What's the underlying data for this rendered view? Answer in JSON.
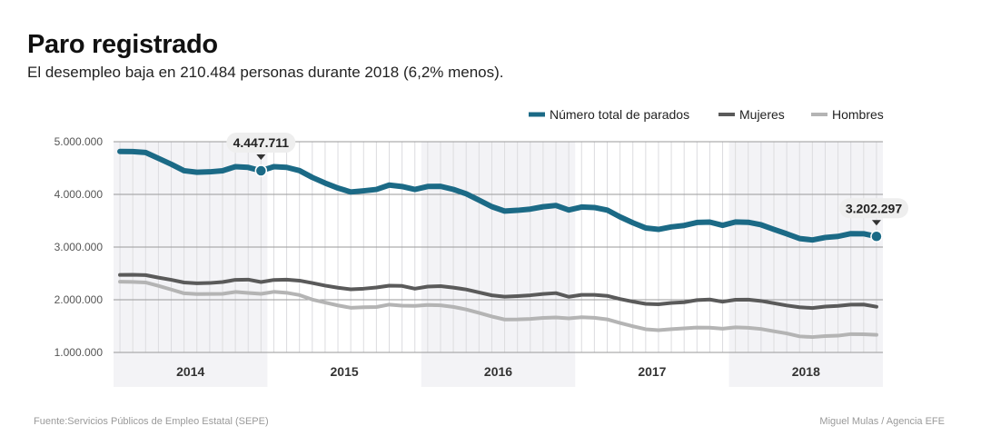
{
  "header": {
    "title": "Paro registrado",
    "subtitle": "El desempleo baja en 210.484 personas durante 2018 (6,2% menos)."
  },
  "footer": {
    "source": "Fuente:Servicios Públicos de Empleo Estatal (SEPE)",
    "credit": "Miguel Mulas / Agencia EFE"
  },
  "chart_data": {
    "type": "line",
    "title": "Paro registrado",
    "xlabel": "",
    "ylabel": "",
    "ylim": [
      1000000,
      5000000
    ],
    "yticks": [
      1000000,
      2000000,
      3000000,
      4000000,
      5000000
    ],
    "ytick_labels": [
      "1.000.000",
      "2.000.000",
      "3.000.000",
      "4.000.000",
      "5.000.000"
    ],
    "years": [
      "2014",
      "2015",
      "2016",
      "2017",
      "2018"
    ],
    "legend_position": "top-right",
    "grid": true,
    "series": [
      {
        "name": "Número total de parados",
        "color": "#1b6a86",
        "values": [
          4814435,
          4812486,
          4795866,
          4683939,
          4572385,
          4449701,
          4420358,
          4427930,
          4447650,
          4526225,
          4512153,
          4447711,
          4525691,
          4512816,
          4451939,
          4322200,
          4215000,
          4120304,
          4046276,
          4067955,
          4094042,
          4176369,
          4149298,
          4093508,
          4150025,
          4152986,
          4094770,
          4011500,
          3891403,
          3767054,
          3683061,
          3697496,
          3720297,
          3764982,
          3789823,
          3702974,
          3760231,
          3750876,
          3702317,
          3573036,
          3461128,
          3362811,
          3335924,
          3382324,
          3410182,
          3467026,
          3474281,
          3412781,
          3476528,
          3470248,
          3422551,
          3335868,
          3252130,
          3162162,
          3135021,
          3182068,
          3202509,
          3254703,
          3252867,
          3202297
        ]
      },
      {
        "name": "Mujeres",
        "color": "#5a5a5a",
        "values": [
          2471000,
          2474000,
          2468000,
          2420000,
          2378000,
          2328000,
          2312000,
          2318000,
          2336000,
          2378000,
          2382000,
          2336000,
          2376000,
          2381000,
          2363000,
          2318000,
          2268000,
          2228000,
          2198000,
          2210000,
          2232000,
          2268000,
          2262000,
          2210000,
          2250000,
          2258000,
          2231000,
          2195000,
          2139000,
          2084000,
          2058000,
          2070000,
          2085000,
          2110000,
          2126000,
          2056000,
          2092000,
          2093000,
          2074000,
          2014000,
          1964000,
          1923000,
          1914000,
          1940000,
          1953000,
          1994000,
          2004000,
          1962000,
          2000000,
          2002000,
          1977000,
          1934000,
          1891000,
          1857000,
          1843000,
          1871000,
          1884000,
          1907000,
          1909000,
          1868000
        ]
      },
      {
        "name": "Hombres",
        "color": "#b4b4b4",
        "values": [
          2343000,
          2338000,
          2328000,
          2264000,
          2194000,
          2122000,
          2108000,
          2110000,
          2112000,
          2148000,
          2130000,
          2112000,
          2150000,
          2132000,
          2089000,
          2004000,
          1947000,
          1892000,
          1848000,
          1858000,
          1862000,
          1908000,
          1887000,
          1884000,
          1900000,
          1895000,
          1864000,
          1816000,
          1752000,
          1683000,
          1625000,
          1627000,
          1635000,
          1655000,
          1664000,
          1647000,
          1668000,
          1658000,
          1628000,
          1559000,
          1497000,
          1440000,
          1422000,
          1442000,
          1457000,
          1473000,
          1470000,
          1451000,
          1476000,
          1468000,
          1445000,
          1402000,
          1361000,
          1305000,
          1292000,
          1311000,
          1318000,
          1348000,
          1344000,
          1334000
        ]
      }
    ],
    "annotations": [
      {
        "label": "4.447.711",
        "series": 0,
        "index": 11
      },
      {
        "label": "3.202.297",
        "series": 0,
        "index": 59
      }
    ]
  }
}
